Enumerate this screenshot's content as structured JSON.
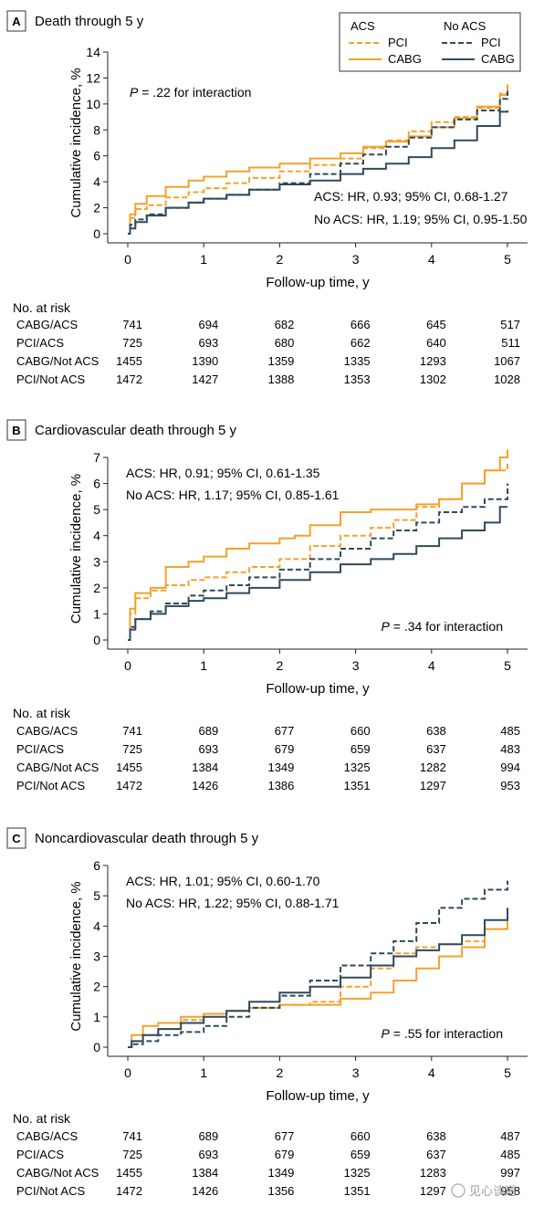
{
  "legend": {
    "acs_heading": "ACS",
    "noacs_heading": "No ACS",
    "pci_label": "PCI",
    "cabg_label": "CABG"
  },
  "colors": {
    "acs": "#f5a12a",
    "noacs": "#2e4a5c",
    "axis": "#222222"
  },
  "watermark": "见心谈道",
  "chart_data": [
    {
      "type": "line",
      "panel_letter": "A",
      "title": "Death through 5 y",
      "xlabel": "Follow-up time, y",
      "ylabel": "Cumulative incidence, %",
      "xlim": [
        0,
        5
      ],
      "ylim": [
        0,
        14
      ],
      "xticks": [
        0,
        1,
        2,
        3,
        4,
        5
      ],
      "yticks": [
        0,
        2,
        4,
        6,
        8,
        10,
        12,
        14
      ],
      "p_text": "P = .22 for interaction",
      "hr_lines": [
        "ACS: HR, 0.93; 95% CI, 0.68-1.27",
        "No ACS: HR, 1.19; 95% CI, 0.95-1.50"
      ],
      "series": [
        {
          "group": "ACS",
          "name": "CABG",
          "dashed": false,
          "x": [
            0,
            0.03,
            0.1,
            0.25,
            0.5,
            0.8,
            1.0,
            1.3,
            1.6,
            2.0,
            2.4,
            2.8,
            3.1,
            3.4,
            3.7,
            4.0,
            4.3,
            4.6,
            4.9,
            5.0
          ],
          "y": [
            0,
            1.5,
            2.3,
            2.9,
            3.6,
            4.1,
            4.4,
            4.8,
            5.1,
            5.4,
            5.8,
            6.2,
            6.7,
            7.1,
            7.5,
            8.2,
            8.9,
            9.8,
            10.7,
            11.3
          ]
        },
        {
          "group": "ACS",
          "name": "PCI",
          "dashed": true,
          "x": [
            0,
            0.03,
            0.1,
            0.25,
            0.5,
            0.8,
            1.0,
            1.3,
            1.6,
            2.0,
            2.4,
            2.8,
            3.1,
            3.4,
            3.7,
            4.0,
            4.3,
            4.6,
            4.9,
            5.0
          ],
          "y": [
            0,
            1.2,
            1.9,
            2.2,
            2.8,
            3.2,
            3.5,
            3.9,
            4.3,
            4.8,
            5.3,
            5.8,
            6.6,
            7.2,
            7.9,
            8.6,
            9.0,
            9.7,
            10.8,
            11.5
          ]
        },
        {
          "group": "No ACS",
          "name": "PCI",
          "dashed": true,
          "x": [
            0,
            0.03,
            0.1,
            0.25,
            0.5,
            0.8,
            1.0,
            1.3,
            1.6,
            2.0,
            2.4,
            2.8,
            3.1,
            3.4,
            3.7,
            4.0,
            4.3,
            4.6,
            4.9,
            5.0
          ],
          "y": [
            0,
            0.7,
            1.1,
            1.5,
            2.0,
            2.4,
            2.7,
            3.0,
            3.4,
            3.9,
            4.6,
            5.4,
            6.1,
            6.7,
            7.4,
            8.2,
            8.8,
            9.5,
            10.4,
            11.0
          ]
        },
        {
          "group": "No ACS",
          "name": "CABG",
          "dashed": false,
          "x": [
            0,
            0.03,
            0.1,
            0.25,
            0.5,
            0.8,
            1.0,
            1.3,
            1.6,
            2.0,
            2.4,
            2.8,
            3.1,
            3.4,
            3.7,
            4.0,
            4.3,
            4.6,
            4.9,
            5.0
          ],
          "y": [
            0,
            0.4,
            0.9,
            1.4,
            2.0,
            2.4,
            2.7,
            3.0,
            3.4,
            3.8,
            4.1,
            4.6,
            5.0,
            5.4,
            5.9,
            6.6,
            7.2,
            8.3,
            9.4,
            9.5
          ]
        }
      ],
      "risk": {
        "heading": "No. at risk",
        "rows": [
          {
            "label": "CABG/ACS",
            "values": [
              "741",
              "694",
              "682",
              "666",
              "645",
              "517"
            ]
          },
          {
            "label": "PCI/ACS",
            "values": [
              "725",
              "693",
              "680",
              "662",
              "640",
              "511"
            ]
          },
          {
            "label": "CABG/Not ACS",
            "values": [
              "1455",
              "1390",
              "1359",
              "1335",
              "1293",
              "1067"
            ]
          },
          {
            "label": "PCI/Not ACS",
            "values": [
              "1472",
              "1427",
              "1388",
              "1353",
              "1302",
              "1028"
            ]
          }
        ]
      }
    },
    {
      "type": "line",
      "panel_letter": "B",
      "title": "Cardiovascular death through 5 y",
      "xlabel": "Follow-up time, y",
      "ylabel": "Cumulative incidence, %",
      "xlim": [
        0,
        5
      ],
      "ylim": [
        0,
        7
      ],
      "xticks": [
        0,
        1,
        2,
        3,
        4,
        5
      ],
      "yticks": [
        0,
        1,
        2,
        3,
        4,
        5,
        6,
        7
      ],
      "p_text": "P = .34 for interaction",
      "hr_lines": [
        "ACS: HR, 0.91; 95% CI, 0.61-1.35",
        "No ACS: HR, 1.17; 95% CI, 0.85-1.61"
      ],
      "series": [
        {
          "group": "ACS",
          "name": "CABG",
          "dashed": false,
          "x": [
            0,
            0.03,
            0.1,
            0.3,
            0.5,
            0.8,
            1.0,
            1.3,
            1.6,
            2.0,
            2.2,
            2.4,
            2.8,
            3.2,
            3.5,
            3.8,
            4.1,
            4.4,
            4.7,
            4.9,
            5.0
          ],
          "y": [
            0,
            1.2,
            1.8,
            2.0,
            2.8,
            3.0,
            3.2,
            3.5,
            3.7,
            3.9,
            4.0,
            4.4,
            4.9,
            5.0,
            5.0,
            5.2,
            5.4,
            6.0,
            6.5,
            7.0,
            7.3
          ]
        },
        {
          "group": "ACS",
          "name": "PCI",
          "dashed": true,
          "x": [
            0,
            0.03,
            0.1,
            0.3,
            0.5,
            0.8,
            1.0,
            1.3,
            1.6,
            2.0,
            2.4,
            2.8,
            3.2,
            3.5,
            3.8,
            4.1,
            4.4,
            4.7,
            5.0
          ],
          "y": [
            0,
            1.0,
            1.6,
            1.9,
            2.1,
            2.3,
            2.4,
            2.6,
            2.8,
            3.1,
            3.6,
            4.0,
            4.3,
            4.6,
            5.1,
            5.4,
            6.0,
            6.5,
            6.8
          ]
        },
        {
          "group": "No ACS",
          "name": "PCI",
          "dashed": true,
          "x": [
            0,
            0.03,
            0.1,
            0.3,
            0.5,
            0.8,
            1.0,
            1.3,
            1.6,
            2.0,
            2.4,
            2.8,
            3.2,
            3.5,
            3.8,
            4.1,
            4.4,
            4.7,
            5.0
          ],
          "y": [
            0,
            0.5,
            0.8,
            1.1,
            1.4,
            1.7,
            1.9,
            2.1,
            2.4,
            2.7,
            3.1,
            3.5,
            3.9,
            4.2,
            4.5,
            4.9,
            5.1,
            5.4,
            6.0
          ]
        },
        {
          "group": "No ACS",
          "name": "CABG",
          "dashed": false,
          "x": [
            0,
            0.03,
            0.1,
            0.3,
            0.5,
            0.8,
            1.0,
            1.3,
            1.6,
            2.0,
            2.4,
            2.8,
            3.2,
            3.5,
            3.8,
            4.1,
            4.4,
            4.7,
            4.9,
            5.0
          ],
          "y": [
            0,
            0.4,
            0.8,
            1.0,
            1.3,
            1.5,
            1.6,
            1.8,
            2.0,
            2.3,
            2.6,
            2.9,
            3.1,
            3.3,
            3.6,
            3.9,
            4.2,
            4.5,
            5.1,
            5.1
          ]
        }
      ],
      "risk": {
        "heading": "No. at risk",
        "rows": [
          {
            "label": "CABG/ACS",
            "values": [
              "741",
              "689",
              "677",
              "660",
              "638",
              "485"
            ]
          },
          {
            "label": "PCI/ACS",
            "values": [
              "725",
              "693",
              "679",
              "659",
              "637",
              "483"
            ]
          },
          {
            "label": "CABG/Not ACS",
            "values": [
              "1455",
              "1384",
              "1349",
              "1325",
              "1282",
              "994"
            ]
          },
          {
            "label": "PCI/Not ACS",
            "values": [
              "1472",
              "1426",
              "1386",
              "1351",
              "1297",
              "953"
            ]
          }
        ]
      }
    },
    {
      "type": "line",
      "panel_letter": "C",
      "title": "Noncardiovascular death through 5 y",
      "xlabel": "Follow-up time, y",
      "ylabel": "Cumulative incidence, %",
      "xlim": [
        0,
        5
      ],
      "ylim": [
        0,
        6
      ],
      "xticks": [
        0,
        1,
        2,
        3,
        4,
        5
      ],
      "yticks": [
        0,
        1,
        2,
        3,
        4,
        5,
        6
      ],
      "p_text": "P = .55 for interaction",
      "hr_lines": [
        "ACS: HR, 1.01; 95% CI, 0.60-1.70",
        "No ACS: HR, 1.22; 95% CI, 0.88-1.71"
      ],
      "series": [
        {
          "group": "ACS",
          "name": "CABG",
          "dashed": false,
          "x": [
            0,
            0.05,
            0.2,
            0.4,
            0.7,
            1.0,
            1.3,
            1.6,
            2.0,
            2.4,
            2.8,
            3.2,
            3.5,
            3.8,
            4.1,
            4.4,
            4.7,
            5.0
          ],
          "y": [
            0,
            0.4,
            0.7,
            0.8,
            1.0,
            1.1,
            1.2,
            1.3,
            1.4,
            1.4,
            1.6,
            1.8,
            2.2,
            2.6,
            3.0,
            3.3,
            3.9,
            4.1
          ]
        },
        {
          "group": "ACS",
          "name": "PCI",
          "dashed": true,
          "x": [
            0,
            0.05,
            0.2,
            0.4,
            0.7,
            1.0,
            1.3,
            1.6,
            2.0,
            2.4,
            2.8,
            3.2,
            3.5,
            3.8,
            4.1,
            4.4,
            4.7,
            5.0
          ],
          "y": [
            0,
            0.2,
            0.4,
            0.6,
            0.9,
            1.1,
            1.2,
            1.3,
            1.4,
            1.5,
            2.0,
            2.6,
            3.1,
            3.3,
            3.4,
            3.5,
            3.9,
            4.3
          ]
        },
        {
          "group": "No ACS",
          "name": "PCI",
          "dashed": true,
          "x": [
            0,
            0.05,
            0.2,
            0.4,
            0.7,
            1.0,
            1.3,
            1.6,
            2.0,
            2.4,
            2.8,
            3.2,
            3.5,
            3.8,
            4.1,
            4.4,
            4.7,
            5.0
          ],
          "y": [
            0,
            0.1,
            0.2,
            0.4,
            0.5,
            0.7,
            1.0,
            1.3,
            1.7,
            2.2,
            2.7,
            3.1,
            3.5,
            4.1,
            4.6,
            4.9,
            5.2,
            5.5
          ]
        },
        {
          "group": "No ACS",
          "name": "CABG",
          "dashed": false,
          "x": [
            0,
            0.05,
            0.2,
            0.4,
            0.7,
            1.0,
            1.3,
            1.6,
            2.0,
            2.4,
            2.8,
            3.2,
            3.5,
            3.8,
            4.1,
            4.4,
            4.7,
            5.0
          ],
          "y": [
            0,
            0.2,
            0.4,
            0.6,
            0.8,
            1.0,
            1.2,
            1.5,
            1.8,
            2.0,
            2.3,
            2.7,
            3.0,
            3.2,
            3.4,
            3.7,
            4.2,
            4.6
          ]
        }
      ],
      "risk": {
        "heading": "No. at risk",
        "rows": [
          {
            "label": "CABG/ACS",
            "values": [
              "741",
              "689",
              "677",
              "660",
              "638",
              "487"
            ]
          },
          {
            "label": "PCI/ACS",
            "values": [
              "725",
              "693",
              "679",
              "659",
              "637",
              "485"
            ]
          },
          {
            "label": "CABG/Not ACS",
            "values": [
              "1455",
              "1384",
              "1349",
              "1325",
              "1283",
              "997"
            ]
          },
          {
            "label": "PCI/Not ACS",
            "values": [
              "1472",
              "1426",
              "1356",
              "1351",
              "1297",
              "958"
            ]
          }
        ]
      }
    }
  ]
}
